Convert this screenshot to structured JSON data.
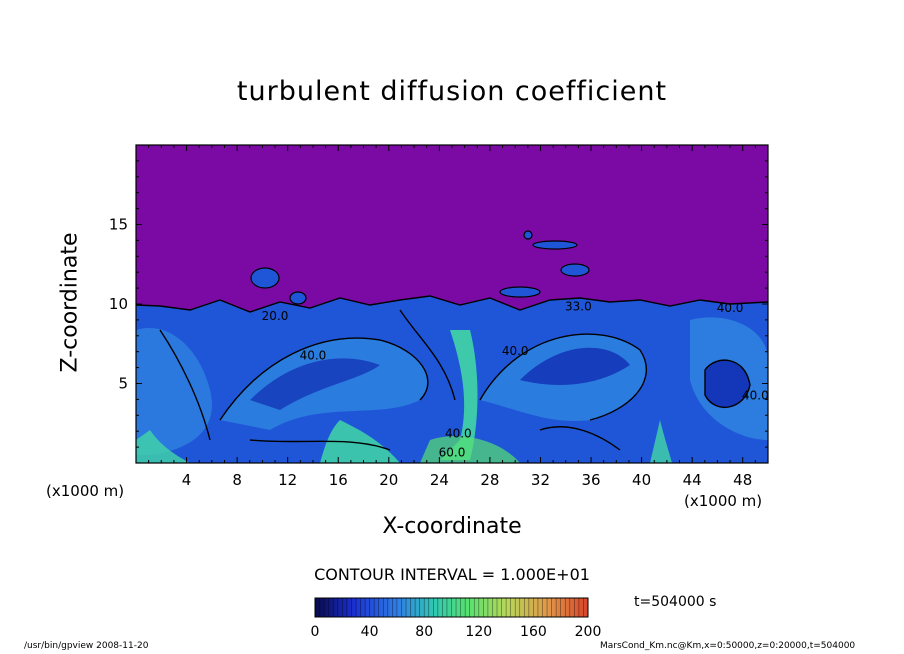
{
  "chart_data": {
    "type": "heatmap",
    "title": "turbulent diffusion coefficient",
    "xlabel": "X-coordinate",
    "ylabel": "Z-coordinate",
    "x_unit": "(x1000 m)",
    "y_unit": "(x1000 m)",
    "xlim": [
      0,
      50
    ],
    "ylim": [
      0,
      20
    ],
    "x_ticks": [
      "4",
      "8",
      "12",
      "16",
      "20",
      "24",
      "28",
      "32",
      "36",
      "40",
      "44",
      "48"
    ],
    "y_ticks": [
      "5",
      "10",
      "15"
    ],
    "contour_labels": [
      {
        "text": "20.0",
        "x": 11,
        "z": 9.0
      },
      {
        "text": "40.0",
        "x": 14,
        "z": 6.5
      },
      {
        "text": "40.0",
        "x": 30,
        "z": 6.8
      },
      {
        "text": "40.0",
        "x": 25.5,
        "z": 1.6
      },
      {
        "text": "60.0",
        "x": 25,
        "z": 0.4
      },
      {
        "text": "40.0",
        "x": 49,
        "z": 4.0
      },
      {
        "text": "40.0",
        "x": 47,
        "z": 9.5
      },
      {
        "text": "33.0",
        "x": 35,
        "z": 9.6
      }
    ],
    "boundary_layer_top_km": 10,
    "colorbar": {
      "min": 0,
      "max": 200,
      "ticks": [
        "0",
        "40",
        "80",
        "120",
        "160",
        "200"
      ],
      "colormap": [
        "#0a0a4a",
        "#1a2fd0",
        "#2f7de6",
        "#31c9b0",
        "#57e070",
        "#b5d85a",
        "#e09a4a",
        "#d8442a"
      ]
    },
    "colors": {
      "above_layer": "#7a0aa3",
      "background_low": "#1f56d8",
      "mid": "#2e82e0",
      "high": "#41d6a6"
    }
  },
  "contour_interval": "CONTOUR INTERVAL = 1.000E+01",
  "time_label": "t=504000 s",
  "footer_left": "/usr/bin/gpview   2008-11-20",
  "footer_right": "MarsCond_Km.nc@Km,x=0:50000,z=0:20000,t=504000"
}
